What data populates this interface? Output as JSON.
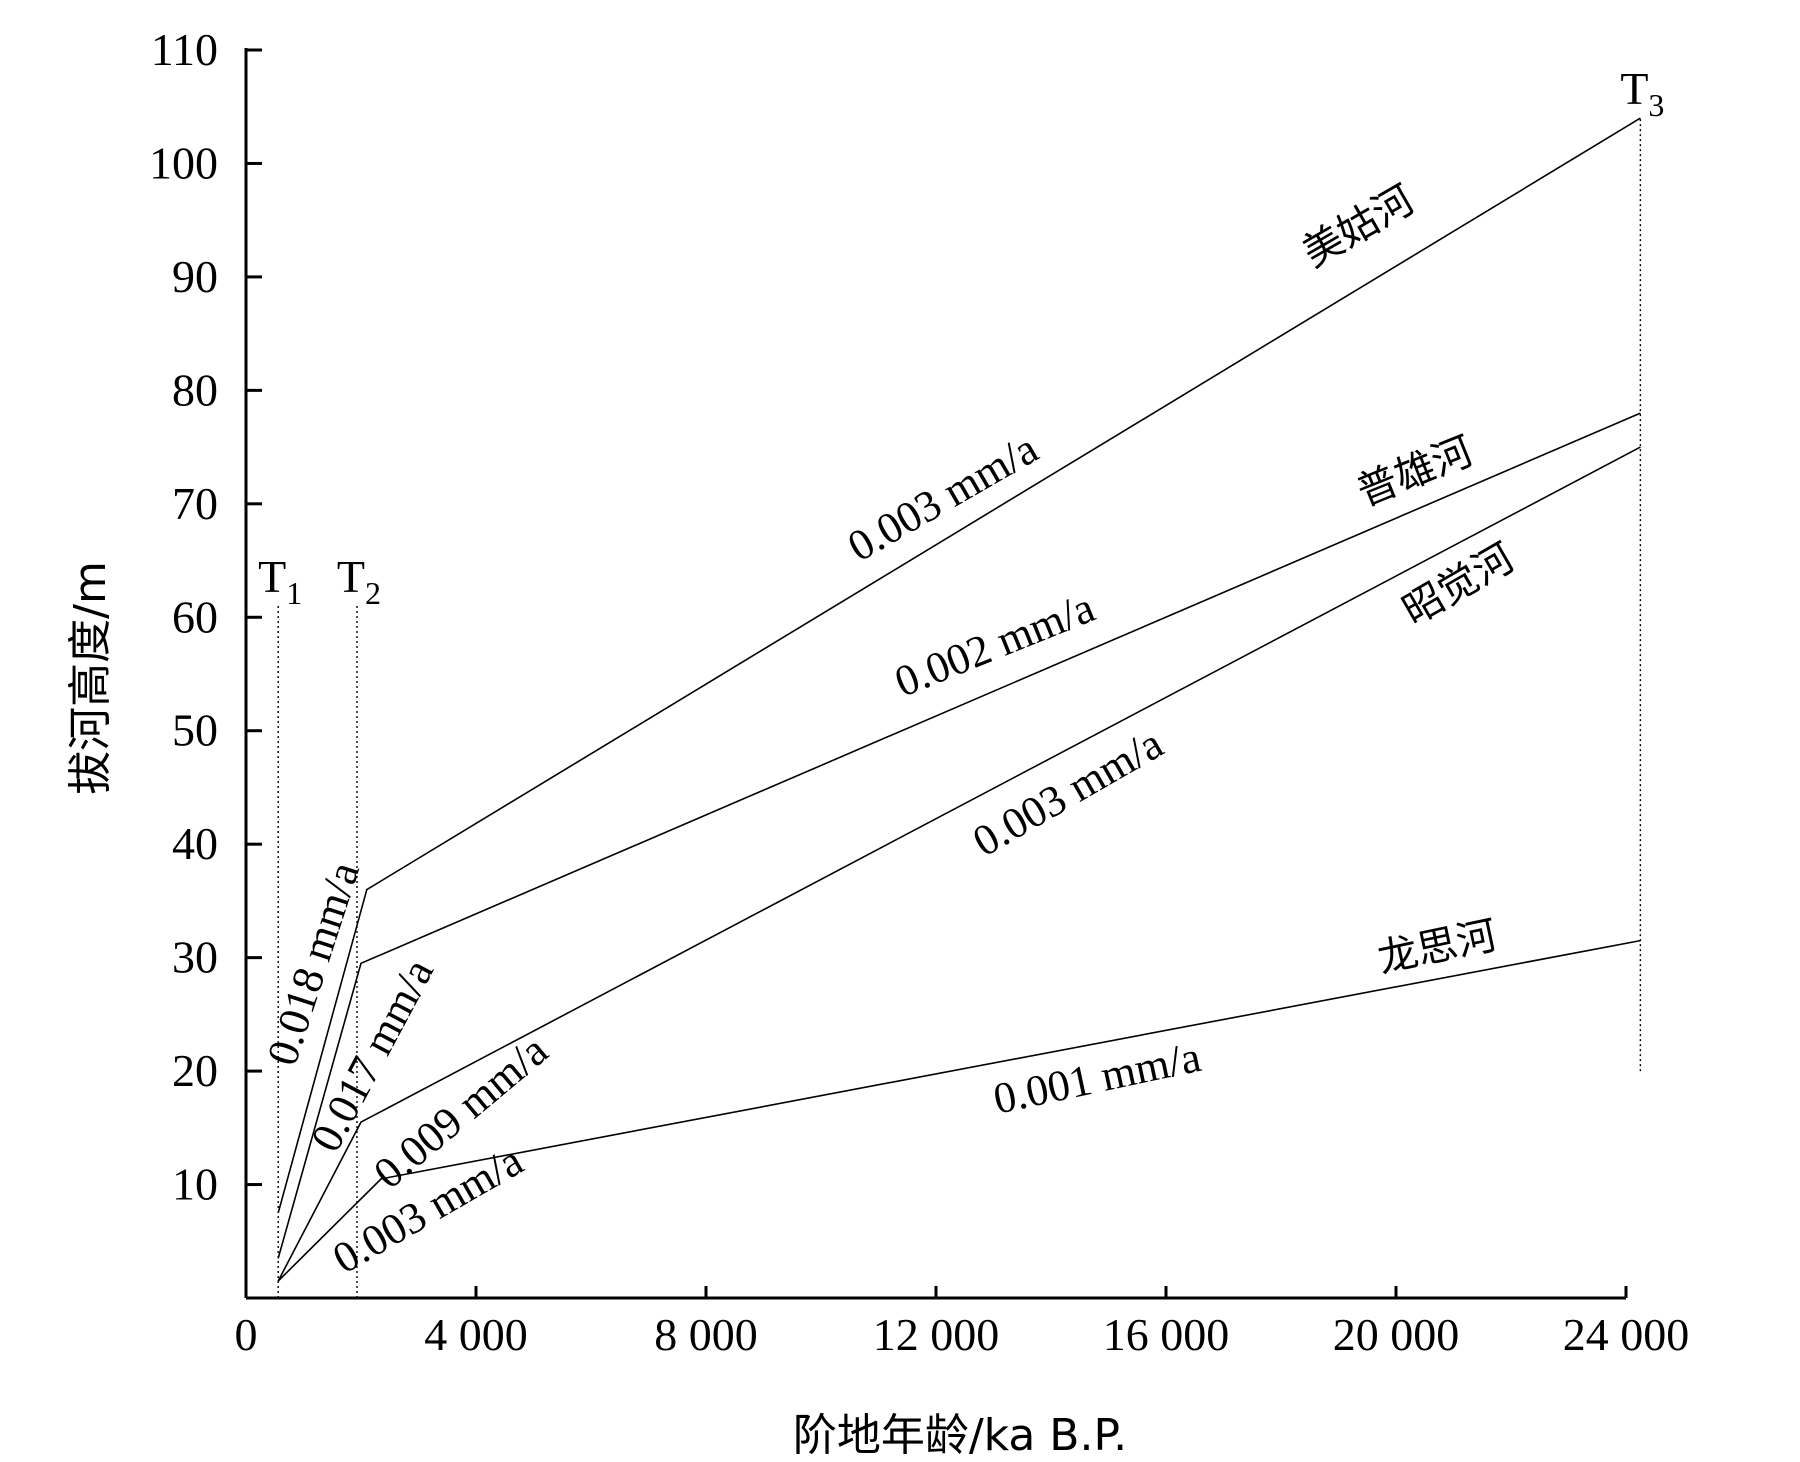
{
  "chart_data": {
    "type": "line",
    "xlabel": "阶地年龄/ka B.P.",
    "ylabel": "拔河高度/m",
    "xlim": [
      0,
      24000
    ],
    "ylim": [
      0,
      110
    ],
    "x_ticks": [
      {
        "value": 0,
        "label": "0"
      },
      {
        "value": 4000,
        "label": "4 000"
      },
      {
        "value": 8000,
        "label": "8 000"
      },
      {
        "value": 12000,
        "label": "12 000"
      },
      {
        "value": 16000,
        "label": "16 000"
      },
      {
        "value": 20000,
        "label": "20 000"
      },
      {
        "value": 24000,
        "label": "24 000"
      }
    ],
    "y_ticks": [
      {
        "value": 10,
        "label": "10"
      },
      {
        "value": 20,
        "label": "20"
      },
      {
        "value": 30,
        "label": "30"
      },
      {
        "value": 40,
        "label": "40"
      },
      {
        "value": 50,
        "label": "50"
      },
      {
        "value": 60,
        "label": "60"
      },
      {
        "value": 70,
        "label": "70"
      },
      {
        "value": 80,
        "label": "80"
      },
      {
        "value": 90,
        "label": "90"
      },
      {
        "value": 100,
        "label": "100"
      },
      {
        "value": 110,
        "label": "110"
      }
    ],
    "terraces": [
      {
        "name": "T",
        "sub": "1",
        "x": 560,
        "y_from": 0,
        "y_to": 61
      },
      {
        "name": "T",
        "sub": "2",
        "x": 1930,
        "y_from": 0,
        "y_to": 61
      },
      {
        "name": "T",
        "sub": "3",
        "x": 24250,
        "y_from": 20,
        "y_to": 104
      }
    ],
    "series": [
      {
        "name": "美姑河",
        "points": [
          [
            560,
            7.5
          ],
          [
            2100,
            36
          ],
          [
            24250,
            104
          ]
        ],
        "rates": [
          "0.018 mm/a",
          "0.003 mm/a"
        ]
      },
      {
        "name": "普雄河",
        "points": [
          [
            560,
            3.5
          ],
          [
            2000,
            29.5
          ],
          [
            24250,
            78
          ]
        ],
        "rates": [
          "0.017 mm/a",
          "0.002 mm/a"
        ]
      },
      {
        "name": "昭觉河",
        "points": [
          [
            560,
            1.5
          ],
          [
            2000,
            15.5
          ],
          [
            24250,
            75
          ]
        ],
        "rates": [
          "0.009 mm/a",
          "0.003 mm/a"
        ]
      },
      {
        "name": "龙思河",
        "points": [
          [
            560,
            1.5
          ],
          [
            2350,
            10.5
          ],
          [
            24250,
            31.5
          ]
        ],
        "rates": [
          "0.003 mm/a",
          "0.001 mm/a"
        ]
      }
    ]
  }
}
